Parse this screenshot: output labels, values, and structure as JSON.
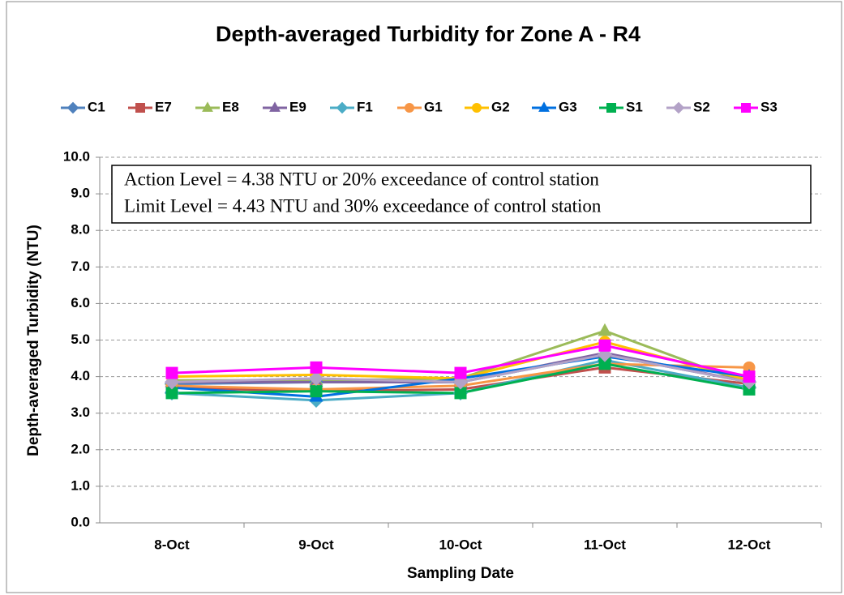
{
  "chart_data": {
    "type": "line",
    "title": "Depth-averaged  Turbidity for Zone A - R4",
    "x_label": "Sampling Date",
    "y_label": "Depth-averaged Turbidity (NTU)",
    "annotations": [
      "Action Level = 4.38 NTU or 20% exceedance of control station",
      "Limit Level = 4.43 NTU and 30% exceedance of control station"
    ],
    "categories": [
      "8-Oct",
      "9-Oct",
      "10-Oct",
      "11-Oct",
      "12-Oct"
    ],
    "ylim": [
      0,
      10
    ],
    "yticks": [
      {
        "value": 0,
        "label": "0.0"
      },
      {
        "value": 1,
        "label": "1.0"
      },
      {
        "value": 2,
        "label": "2.0"
      },
      {
        "value": 3,
        "label": "3.0"
      },
      {
        "value": 4,
        "label": "4.0"
      },
      {
        "value": 5,
        "label": "5.0"
      },
      {
        "value": 6,
        "label": "6.0"
      },
      {
        "value": 7,
        "label": "7.0"
      },
      {
        "value": 8,
        "label": "8.0"
      },
      {
        "value": 9,
        "label": "9.0"
      },
      {
        "value": 10,
        "label": "10.0"
      }
    ],
    "grid": true,
    "legend": "top",
    "series": [
      {
        "name": "C1",
        "color": "#4f81bd",
        "marker": "diamond",
        "values": [
          3.8,
          3.85,
          3.85,
          4.6,
          3.85
        ]
      },
      {
        "name": "E7",
        "color": "#c0504d",
        "marker": "square",
        "values": [
          3.7,
          3.6,
          3.65,
          4.25,
          3.8
        ]
      },
      {
        "name": "E8",
        "color": "#9bbb59",
        "marker": "triangle",
        "values": [
          3.9,
          3.9,
          3.95,
          5.25,
          3.8
        ]
      },
      {
        "name": "E9",
        "color": "#8064a2",
        "marker": "triangle",
        "values": [
          3.85,
          3.85,
          3.85,
          4.65,
          3.85
        ]
      },
      {
        "name": "F1",
        "color": "#4bacc6",
        "marker": "diamond",
        "values": [
          3.55,
          3.35,
          3.55,
          4.45,
          3.7
        ]
      },
      {
        "name": "G1",
        "color": "#f79646",
        "marker": "circle",
        "values": [
          3.75,
          3.65,
          3.75,
          4.35,
          4.25
        ]
      },
      {
        "name": "G2",
        "color": "#ffc000",
        "marker": "circle",
        "values": [
          4.0,
          4.05,
          3.95,
          4.95,
          3.9
        ]
      },
      {
        "name": "G3",
        "color": "#0070e0",
        "marker": "triangle",
        "values": [
          3.7,
          3.45,
          3.95,
          4.55,
          4.0
        ]
      },
      {
        "name": "S1",
        "color": "#00b050",
        "marker": "square",
        "values": [
          3.55,
          3.6,
          3.55,
          4.35,
          3.65
        ]
      },
      {
        "name": "S2",
        "color": "#b3a2c7",
        "marker": "diamond",
        "values": [
          3.85,
          3.95,
          3.85,
          4.6,
          3.85
        ]
      },
      {
        "name": "S3",
        "color": "#ff00ff",
        "marker": "square",
        "values": [
          4.1,
          4.25,
          4.1,
          4.85,
          4.0
        ]
      }
    ]
  }
}
